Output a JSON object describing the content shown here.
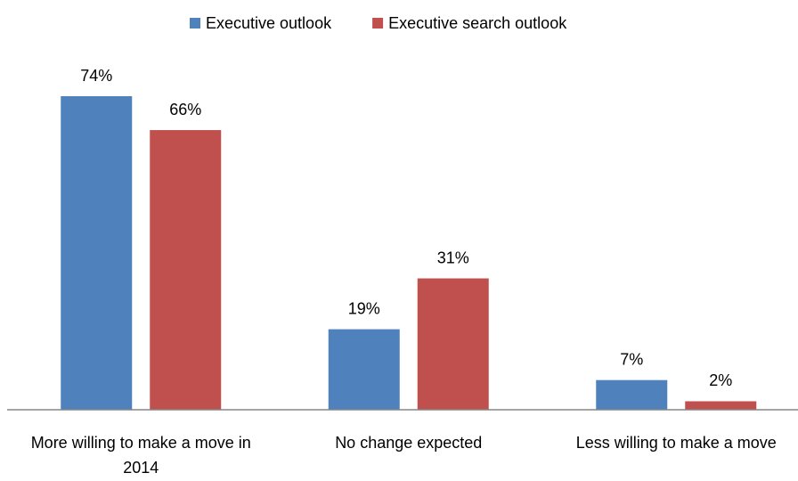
{
  "chart_data": {
    "type": "bar",
    "categories": [
      "More willing to make a move in 2014",
      "No change expected",
      "Less willing to make a move"
    ],
    "series": [
      {
        "name": "Executive outlook",
        "color": "#4f81bd",
        "values": [
          74,
          19,
          7
        ],
        "value_labels": [
          "74%",
          "19%",
          "7%"
        ]
      },
      {
        "name": "Executive search outlook",
        "color": "#c0504d",
        "values": [
          66,
          31,
          2
        ],
        "value_labels": [
          "66%",
          "31%",
          "2%"
        ]
      }
    ],
    "legend": "top"
  }
}
